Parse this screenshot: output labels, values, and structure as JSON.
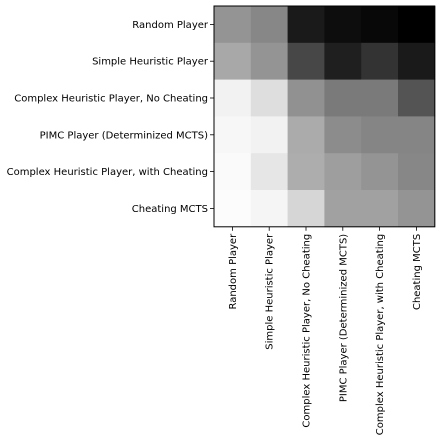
{
  "chart_data": {
    "type": "heatmap",
    "title": "",
    "xlabel": "",
    "ylabel": "",
    "rows": [
      "Random Player",
      "Simple Heuristic Player",
      "Complex Heuristic Player, No Cheating",
      "PIMC Player (Determinized MCTS)",
      "Complex Heuristic Player, with Cheating",
      "Cheating MCTS"
    ],
    "columns": [
      "Random Player",
      "Simple Heuristic Player",
      "Complex Heuristic Player, No Cheating",
      "PIMC Player (Determinized MCTS)",
      "Complex Heuristic Player, with Cheating",
      "Cheating MCTS"
    ],
    "colormap": "gray (0 = black, 1 = white)",
    "values": [
      [
        0.58,
        0.53,
        0.1,
        0.05,
        0.03,
        0.0
      ],
      [
        0.66,
        0.58,
        0.28,
        0.12,
        0.2,
        0.1
      ],
      [
        0.95,
        0.87,
        0.57,
        0.48,
        0.48,
        0.33
      ],
      [
        0.97,
        0.95,
        0.67,
        0.55,
        0.52,
        0.52
      ],
      [
        0.98,
        0.9,
        0.68,
        0.62,
        0.58,
        0.53
      ],
      [
        0.99,
        0.96,
        0.84,
        0.63,
        0.63,
        0.58
      ]
    ]
  }
}
